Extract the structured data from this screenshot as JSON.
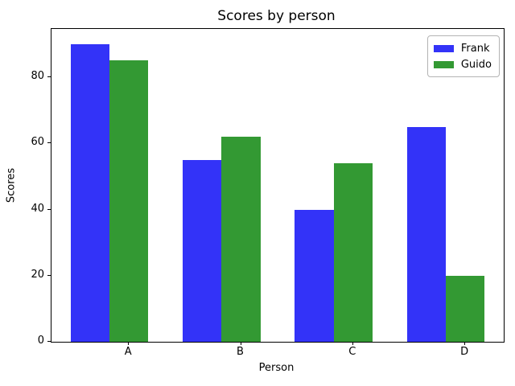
{
  "chart_data": {
    "type": "bar",
    "title": "Scores by person",
    "xlabel": "Person",
    "ylabel": "Scores",
    "categories": [
      "A",
      "B",
      "C",
      "D"
    ],
    "series": [
      {
        "name": "Frank",
        "color": "#3333f8",
        "values": [
          90,
          55,
          40,
          65
        ]
      },
      {
        "name": "Guido",
        "color": "#339933",
        "values": [
          85,
          62,
          54,
          20
        ]
      }
    ],
    "yticks": [
      0,
      20,
      40,
      60,
      80
    ],
    "ylim": [
      0,
      94.5
    ],
    "grid": false,
    "legend_position": "upper right",
    "background_color": "#ffffff",
    "axis_color": "#000000"
  }
}
